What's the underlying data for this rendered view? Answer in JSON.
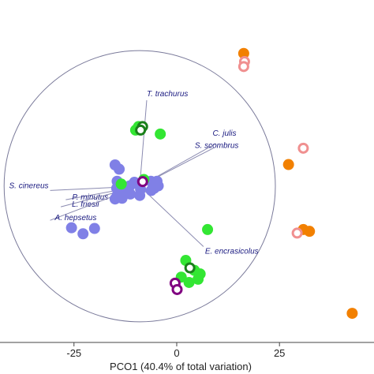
{
  "chart_data": {
    "type": "scatter",
    "xlabel": "PCO1 (40.4% of total variation)",
    "xlim": [
      -43,
      48
    ],
    "ylim": [
      -44,
      44
    ],
    "x_ticks": [
      -25,
      0,
      25
    ],
    "correlation_circle": {
      "center": [
        -9,
        0
      ],
      "radius": 33
    },
    "vectors": [
      {
        "label": "T. trachurus",
        "x": -7.3,
        "y": 24.2
      },
      {
        "label": "C. julis",
        "x": 9.5,
        "y": 12.0
      },
      {
        "label": "S. scombrus",
        "x": 9.0,
        "y": 10.8
      },
      {
        "label": "S. cinereus",
        "x": -30.8,
        "y": -1.2
      },
      {
        "label": "P. minutus",
        "x": -27.0,
        "y": -3.8
      },
      {
        "label": "L. friesii",
        "x": -28.2,
        "y": -5.8
      },
      {
        "label": "A. hepsetus",
        "x": -30.8,
        "y": -9.6
      },
      {
        "label": "E. encrasicolus",
        "x": 6.5,
        "y": -17.0
      }
    ],
    "series": [
      {
        "color": "#8080e6",
        "marker": "filled",
        "points": [
          [
            -15,
            6
          ],
          [
            -14,
            4.8
          ],
          [
            -14.5,
            1.4
          ],
          [
            -14,
            0.4
          ],
          [
            -14.6,
            -0.6
          ],
          [
            -13,
            0
          ],
          [
            -12.4,
            -0.6
          ],
          [
            -11.4,
            0.1
          ],
          [
            -10.3,
            1.1
          ],
          [
            -9.4,
            0.6
          ],
          [
            -6.3,
            1.4
          ],
          [
            -5.7,
            0.6
          ],
          [
            -4.8,
            1.4
          ],
          [
            -4.5,
            0.1
          ],
          [
            -5.5,
            -0.6
          ],
          [
            -8.8,
            -0.9
          ],
          [
            -11.3,
            -2.2
          ],
          [
            -12.6,
            -2.2
          ],
          [
            -14.5,
            -2.6
          ],
          [
            -13.3,
            -3.4
          ],
          [
            -15,
            -3.6
          ],
          [
            -9,
            -2.6
          ],
          [
            -6.2,
            -1.2
          ],
          [
            -25.6,
            -11.7
          ],
          [
            -20,
            -11.9
          ],
          [
            -22.8,
            -13.4
          ]
        ]
      },
      {
        "color": "#33e633",
        "marker": "filled",
        "points": [
          [
            -9.3,
            16.8
          ],
          [
            -10,
            15.8
          ],
          [
            -4,
            14.7
          ],
          [
            -13.5,
            0.6
          ],
          [
            -8,
            1.9
          ],
          [
            2.2,
            -20.9
          ],
          [
            4.3,
            -23.7
          ],
          [
            5.7,
            -24.7
          ],
          [
            1.1,
            -25.6
          ],
          [
            3,
            -27.1
          ],
          [
            5.2,
            -26.2
          ],
          [
            7.5,
            -12.2
          ]
        ]
      },
      {
        "color": "#1a801a",
        "marker": "open",
        "points": [
          [
            -8.3,
            16.8
          ],
          [
            -8.8,
            15.8
          ],
          [
            3.2,
            -23.0
          ]
        ]
      },
      {
        "color": "#800080",
        "marker": "open",
        "points": [
          [
            -8.3,
            1.3
          ],
          [
            -0.4,
            -27.3
          ],
          [
            0.1,
            -29.1
          ]
        ]
      },
      {
        "color": "#f28000",
        "marker": "filled",
        "points": [
          [
            16.3,
            37.4
          ],
          [
            27.2,
            6.1
          ],
          [
            32.3,
            -12.7
          ],
          [
            30.8,
            -12.2
          ],
          [
            42.7,
            -35.8
          ]
        ]
      },
      {
        "color": "#f09090",
        "marker": "open",
        "points": [
          [
            16.5,
            35.1
          ],
          [
            16.3,
            33.7
          ],
          [
            30.8,
            10.7
          ],
          [
            29.3,
            -13.2
          ]
        ]
      }
    ]
  }
}
